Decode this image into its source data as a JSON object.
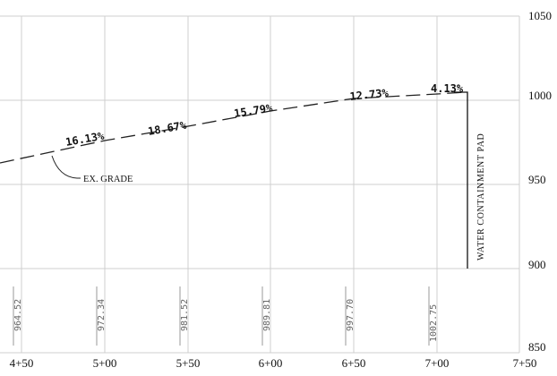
{
  "profile": {
    "x_labels": [
      "4+50",
      "5+00",
      "5+50",
      "6+00",
      "6+50",
      "7+00",
      "7+50"
    ],
    "y_labels": [
      "1050",
      "1000",
      "950",
      "900",
      "850"
    ],
    "ground_elevations": [
      "964.52",
      "972.34",
      "981.52",
      "989.81",
      "997.70",
      "1002.75"
    ],
    "grades": [
      "16.13%",
      "18.67%",
      "15.79%",
      "12.73%",
      "4.13%"
    ],
    "existing_grade_label": "EX. GRADE",
    "pad_label": "WATER CONTAINMENT PAD"
  }
}
